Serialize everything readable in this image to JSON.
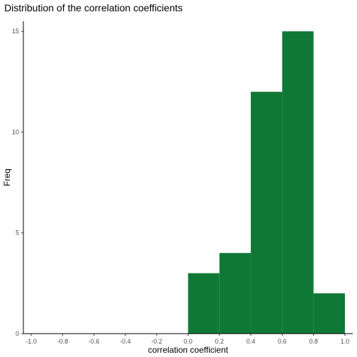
{
  "chart_data": {
    "type": "bar",
    "title": "Distribution of the correlation coefficients",
    "xlabel": "correlation coefficient",
    "ylabel": "Freq",
    "xlim": [
      -1.05,
      1.05
    ],
    "ylim": [
      0,
      15.5
    ],
    "x_ticks": [
      -1.0,
      -0.8,
      -0.6,
      -0.4,
      -0.2,
      0.0,
      0.2,
      0.4,
      0.6,
      0.8,
      1.0
    ],
    "x_tick_labels": [
      "-1.0",
      "-0.8",
      "-0.6",
      "-0.4",
      "-0.2",
      "0.0",
      "0.2",
      "0.4",
      "0.6",
      "0.8",
      "1.0"
    ],
    "y_ticks": [
      0,
      5,
      10,
      15
    ],
    "y_tick_labels": [
      "0",
      "5",
      "10",
      "15"
    ],
    "bins": [
      {
        "start": 0.0,
        "end": 0.2,
        "count": 3
      },
      {
        "start": 0.2,
        "end": 0.4,
        "count": 4
      },
      {
        "start": 0.4,
        "end": 0.6,
        "count": 12
      },
      {
        "start": 0.6,
        "end": 0.8,
        "count": 15
      },
      {
        "start": 0.8,
        "end": 1.0,
        "count": 2
      }
    ],
    "bar_color": "#107836",
    "grid": false,
    "legend": "none"
  }
}
